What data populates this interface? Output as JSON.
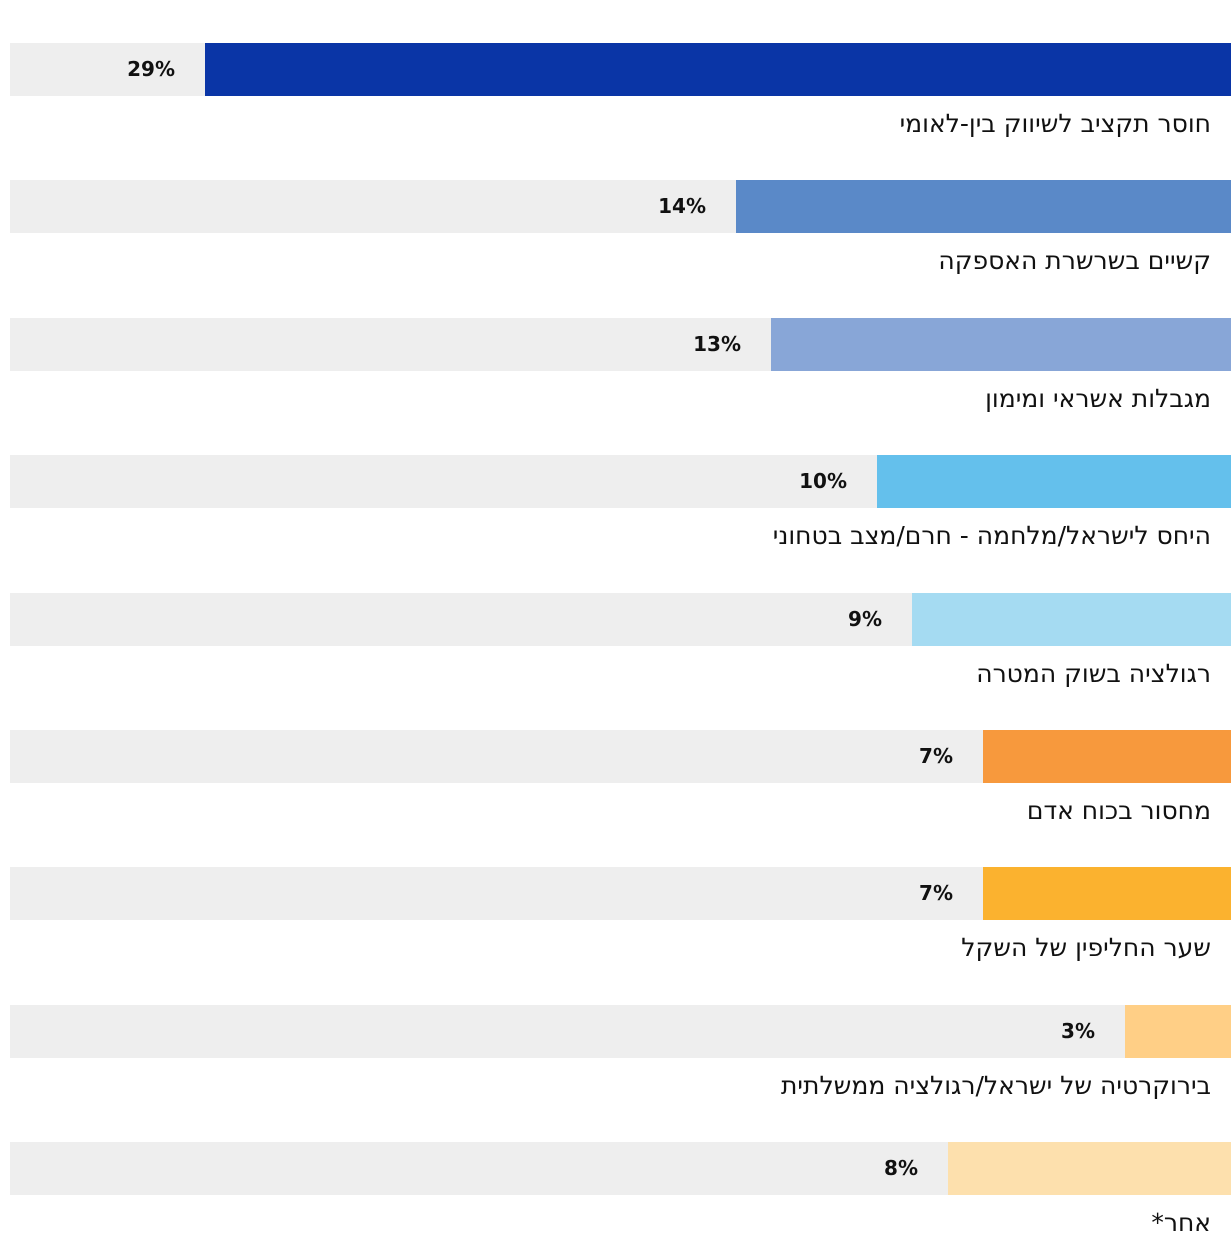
{
  "chart_data": {
    "type": "bar",
    "orientation": "horizontal",
    "direction": "rtl",
    "categories": [
      "חוסר תקציב לשיווק בין-לאומי",
      "קשיים בשרשרת האספקה",
      "מגבלות אשראי ומימון",
      "היחס לישראל/מלחמה - חרם/מצב בטחוני",
      "רגולציה בשוק המטרה",
      "מחסור בכוח אדם",
      "שער החליפין של השקל",
      "בירוקרטיה של ישראל/רגולציה ממשלתית",
      "אחר*"
    ],
    "values": [
      29,
      14,
      13,
      10,
      9,
      7,
      7,
      3,
      8
    ],
    "value_labels": [
      "29%",
      "14%",
      "13%",
      "10%",
      "9%",
      "7%",
      "7%",
      "3%",
      "8%"
    ],
    "colors": [
      "#0a35a6",
      "#5a89c8",
      "#88a6d7",
      "#64c0ec",
      "#a5dbf2",
      "#f7993d",
      "#fbb22f",
      "#ffcf86",
      "#fde0ad"
    ],
    "track_color": "#eeeeee",
    "title": "",
    "xlabel": "",
    "ylabel": "",
    "xlim": [
      0,
      34.5
    ],
    "grid": false,
    "legend": "none"
  }
}
